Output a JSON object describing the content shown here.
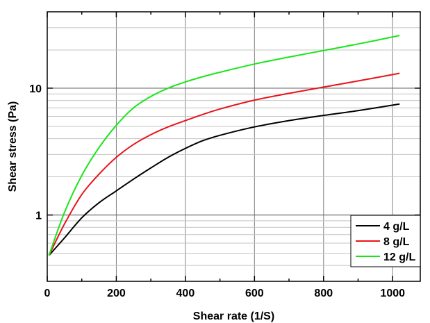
{
  "chart_data": {
    "type": "line",
    "title": "",
    "xlabel": "Shear rate (1/S)",
    "ylabel": "Shear stress (Pa)",
    "xlim": [
      0,
      1080
    ],
    "ylim": [
      0.3,
      40
    ],
    "yscale": "log",
    "grid": true,
    "legend_position": "bottom-right",
    "x_ticks": [
      0,
      200,
      400,
      600,
      800,
      1000
    ],
    "x_tick_labels": [
      "0",
      "200",
      "400",
      "600",
      "800",
      "1000"
    ],
    "y_ticks": [
      1,
      10
    ],
    "y_tick_labels": [
      "1",
      "10"
    ],
    "x": [
      5,
      50,
      100,
      150,
      200,
      250,
      300,
      350,
      400,
      450,
      500,
      600,
      700,
      800,
      900,
      1020
    ],
    "series": [
      {
        "name": "4 g/L",
        "color": "#000000",
        "values": [
          0.48,
          0.66,
          0.95,
          1.25,
          1.55,
          1.92,
          2.35,
          2.85,
          3.35,
          3.85,
          4.25,
          4.95,
          5.55,
          6.1,
          6.65,
          7.5
        ]
      },
      {
        "name": "8 g/L",
        "color": "#e8141b",
        "values": [
          0.48,
          0.85,
          1.45,
          2.1,
          2.85,
          3.6,
          4.3,
          4.95,
          5.55,
          6.2,
          6.85,
          8.05,
          9.1,
          10.2,
          11.4,
          13.1
        ]
      },
      {
        "name": "12 g/L",
        "color": "#19e619",
        "values": [
          0.48,
          1.05,
          2.05,
          3.4,
          5.1,
          7.0,
          8.6,
          10.0,
          11.2,
          12.3,
          13.35,
          15.5,
          17.6,
          19.8,
          22.3,
          26.0
        ]
      }
    ]
  }
}
